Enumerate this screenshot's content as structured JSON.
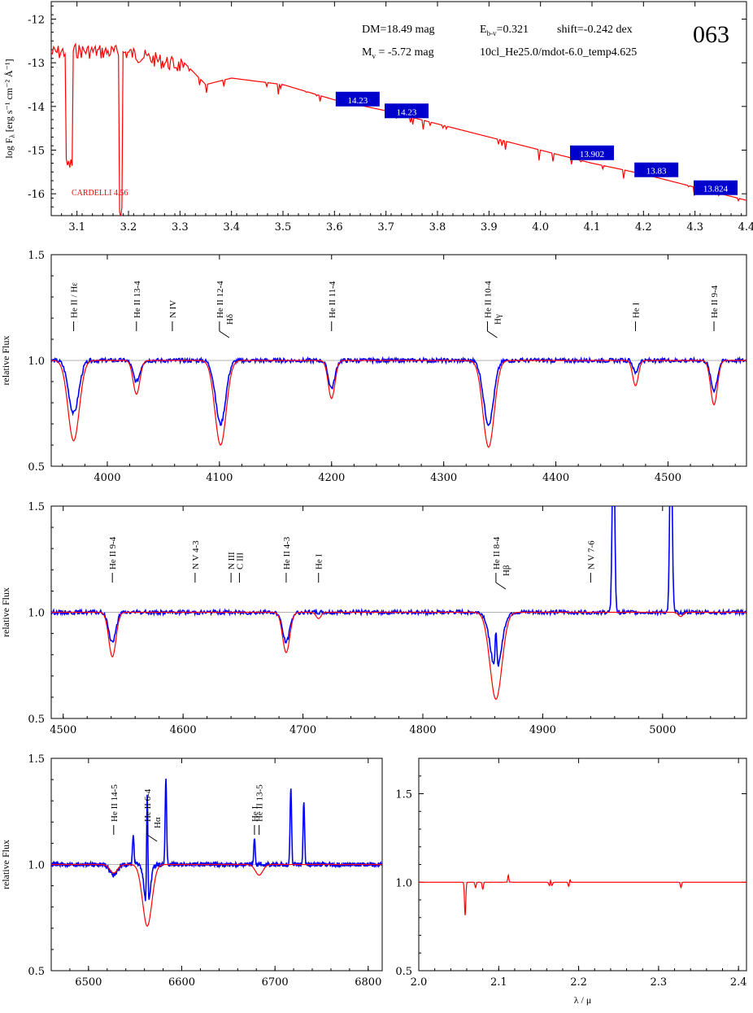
{
  "header": {
    "dm": "DM=18.49 mag",
    "ebv": "E",
    "ebv_sub": "b-v",
    "ebv_val": "=0.321",
    "shift": "shift=-0.242 dex",
    "mv": "M",
    "mv_sub": "v",
    "mv_val": " =  -5.72 mag",
    "model": "10cl_He25.0/mdot-6.0_temp4.625",
    "id": "063"
  },
  "chart_data": [
    {
      "type": "line",
      "panel": "sed",
      "ylabel_text": "log F",
      "ylabel_sub": "λ",
      "ylabel_unit": " [erg s⁻¹ cm⁻² Å⁻¹]",
      "xlim": [
        3.05,
        4.4
      ],
      "ylim": [
        -16.5,
        -11.6
      ],
      "xticks": [
        3.1,
        3.2,
        3.3,
        3.4,
        3.5,
        3.6,
        3.7,
        3.8,
        3.9,
        4.0,
        4.1,
        4.2,
        4.3,
        4.4
      ],
      "yticks": [
        -16,
        -15,
        -14,
        -13,
        -12
      ],
      "annotation": "CARDELLI 4.56",
      "series": [
        {
          "x": [
            3.05,
            3.1,
            3.2,
            3.3,
            3.35,
            3.4,
            3.5,
            3.6,
            3.7,
            3.8,
            3.9,
            4.0,
            4.1,
            4.2,
            4.3,
            4.4
          ],
          "y": [
            -12.6,
            -12.55,
            -12.6,
            -12.9,
            -13.5,
            -13.35,
            -13.5,
            -13.85,
            -14.1,
            -14.4,
            -14.7,
            -15.0,
            -15.3,
            -15.55,
            -15.85,
            -16.15
          ]
        }
      ],
      "photometry": [
        {
          "x": 3.645,
          "y": -13.85,
          "label": "14.23"
        },
        {
          "x": 3.74,
          "y": -14.12,
          "label": "14.23"
        },
        {
          "x": 4.1,
          "y": -15.08,
          "label": "13.902"
        },
        {
          "x": 4.225,
          "y": -15.47,
          "label": "13.83"
        },
        {
          "x": 4.34,
          "y": -15.88,
          "label": "13.824"
        }
      ]
    },
    {
      "type": "line",
      "panel": "blue1",
      "ylabel": "relative Flux",
      "xlim": [
        3950,
        4570
      ],
      "ylim": [
        0.5,
        1.5
      ],
      "xticks": [
        4000,
        4100,
        4200,
        4300,
        4400,
        4500
      ],
      "yticks": [
        0.5,
        1.0,
        1.5
      ],
      "ytick_labels": [
        "0.5",
        "1.0",
        "1.5"
      ],
      "lines": [
        {
          "x": 3970,
          "label": "He II / Hε"
        },
        {
          "x": 4026,
          "label": "He II 13-4"
        },
        {
          "x": 4058,
          "label": "N IV"
        },
        {
          "x": 4100,
          "label": "He II 12-4",
          "label2": "Hδ"
        },
        {
          "x": 4200,
          "label": "He II 11-4"
        },
        {
          "x": 4339,
          "label": "He II 10-4",
          "label2": "Hγ"
        },
        {
          "x": 4471,
          "label": "He I"
        },
        {
          "x": 4541,
          "label": "He II 9-4"
        }
      ],
      "model_absorption": [
        [
          3970,
          0.38,
          5
        ],
        [
          4026,
          0.16,
          3
        ],
        [
          4101,
          0.4,
          5
        ],
        [
          4200,
          0.18,
          3
        ],
        [
          4340,
          0.41,
          5
        ],
        [
          4471,
          0.12,
          2.5
        ],
        [
          4541,
          0.21,
          3
        ]
      ],
      "obs_absorption": [
        [
          3970,
          0.25,
          4.5
        ],
        [
          4026,
          0.1,
          3
        ],
        [
          4101,
          0.3,
          4.5
        ],
        [
          4200,
          0.13,
          3
        ],
        [
          4340,
          0.3,
          4.5
        ],
        [
          4471,
          0.06,
          2
        ],
        [
          4541,
          0.14,
          3
        ]
      ]
    },
    {
      "type": "line",
      "panel": "blue2",
      "ylabel": "relative Flux",
      "xlim": [
        4490,
        5070
      ],
      "ylim": [
        0.5,
        1.5
      ],
      "xticks": [
        4500,
        4600,
        4700,
        4800,
        4900,
        5000
      ],
      "yticks": [
        0.5,
        1.0,
        1.5
      ],
      "ytick_labels": [
        "0.5",
        "1.0",
        "1.5"
      ],
      "lines": [
        {
          "x": 4541,
          "label": "He II 9-4"
        },
        {
          "x": 4610,
          "label": "N V 4-3"
        },
        {
          "x": 4640,
          "label": "N III"
        },
        {
          "x": 4647,
          "label": "C III"
        },
        {
          "x": 4686,
          "label": "He II 4-3"
        },
        {
          "x": 4713,
          "label": "He I"
        },
        {
          "x": 4861,
          "label": "He II 8-4",
          "label2": "Hβ"
        },
        {
          "x": 4940,
          "label": "N V 7-6"
        }
      ],
      "model_absorption": [
        [
          4541,
          0.21,
          3
        ],
        [
          4686,
          0.19,
          3
        ],
        [
          4713,
          0.03,
          2
        ],
        [
          4861,
          0.41,
          5
        ],
        [
          5015,
          0.02,
          2
        ]
      ],
      "obs_absorption": [
        [
          4541,
          0.14,
          3
        ],
        [
          4686,
          0.14,
          3
        ],
        [
          4861,
          0.28,
          4.5
        ]
      ],
      "emission": [
        [
          4959,
          0.9,
          1.0
        ],
        [
          5007,
          0.9,
          1.0
        ],
        [
          4861,
          0.2,
          0.7
        ]
      ]
    },
    {
      "type": "line",
      "panel": "red",
      "ylabel": "relative Flux",
      "xlim": [
        6460,
        6815
      ],
      "ylim": [
        0.5,
        1.5
      ],
      "xticks": [
        6500,
        6600,
        6700,
        6800
      ],
      "yticks": [
        0.5,
        1.0,
        1.5
      ],
      "ytick_labels": [
        "0.5",
        "1.0",
        "1.5"
      ],
      "lines": [
        {
          "x": 6527,
          "label": "He II 14-5"
        },
        {
          "x": 6563,
          "label": "He II 6-4",
          "label2": "Hα"
        },
        {
          "x": 6678,
          "label": "He I"
        },
        {
          "x": 6683,
          "label": "He II 13-5"
        }
      ],
      "model_absorption": [
        [
          6527,
          0.04,
          4
        ],
        [
          6563,
          0.29,
          5
        ],
        [
          6683,
          0.05,
          4
        ]
      ],
      "obs_absorption": [
        [
          6527,
          0.05,
          4
        ],
        [
          6563,
          0.22,
          3
        ]
      ],
      "emission": [
        [
          6548,
          0.14,
          0.8
        ],
        [
          6563,
          0.55,
          0.7
        ],
        [
          6583,
          0.4,
          0.8
        ],
        [
          6678,
          0.13,
          0.7
        ],
        [
          6717,
          0.36,
          0.8
        ],
        [
          6731,
          0.3,
          0.8
        ]
      ]
    },
    {
      "type": "line",
      "panel": "ir",
      "xlabel": "λ / μ",
      "xlim": [
        2.0,
        2.41
      ],
      "ylim": [
        0.5,
        1.7
      ],
      "xticks": [
        2.0,
        2.1,
        2.2,
        2.3,
        2.4
      ],
      "yticks": [
        0.5,
        1.0,
        1.5
      ],
      "ytick_labels": [
        "0.5",
        "1.0",
        "1.5"
      ],
      "model_absorption": [
        [
          2.058,
          0.19,
          0.0008
        ],
        [
          2.071,
          0.03,
          0.0008
        ],
        [
          2.08,
          0.04,
          0.0008
        ],
        [
          2.165,
          0.04,
          0.0015
        ],
        [
          2.188,
          0.03,
          0.001
        ],
        [
          2.328,
          0.03,
          0.0008
        ]
      ],
      "emission": [
        [
          2.112,
          0.04,
          0.0007
        ],
        [
          2.165,
          0.05,
          0.0007
        ],
        [
          2.189,
          0.03,
          0.0007
        ]
      ]
    }
  ]
}
